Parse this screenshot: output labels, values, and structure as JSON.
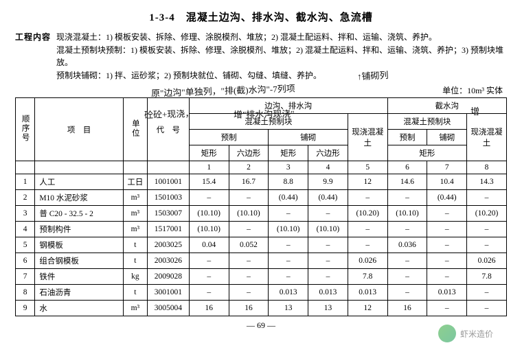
{
  "title": "1-3-4　混凝土边沟、排水沟、截水沟、急流槽",
  "content_label": "工程内容",
  "content_lines": [
    "现浇混凝土：1) 模板安装、拆除、修理、涂脱模剂、堆放；2) 混凝土配运料、拌和、运输、浇筑、养护。",
    "混凝土预制块预制：1) 模板安装、拆除、修理、涂脱模剂、堆放；2) 混凝土配运料、拌和、运输、浇筑、养护；3) 预制块堆放。",
    "预制块铺砌：1) 拌、运砂浆；2) 预制块就位、铺砌、勾缝、填缝、养护。"
  ],
  "unit_label": "单位：10m³ 实体",
  "header": {
    "seq": "顺序号",
    "item": "项　目",
    "unit": "单位",
    "code": "代　号",
    "group1": "边沟、排水沟",
    "group2": "截水沟",
    "sub_precast": "混凝土预制块",
    "sub_castinplace": "现浇混凝土",
    "sub_pre": "预制",
    "sub_lay": "铺砌",
    "shape_rect": "矩形",
    "shape_hex": "六边形"
  },
  "col_nums": [
    "1",
    "2",
    "3",
    "4",
    "5",
    "6",
    "7",
    "8"
  ],
  "rows": [
    {
      "n": "1",
      "item": "人工",
      "unit": "工日",
      "code": "1001001",
      "v": [
        "15.4",
        "16.7",
        "8.8",
        "9.9",
        "12",
        "14.6",
        "10.4",
        "14.3"
      ]
    },
    {
      "n": "2",
      "item": "M10 水泥砂浆",
      "unit": "m³",
      "code": "1501003",
      "v": [
        "–",
        "–",
        "(0.44)",
        "(0.44)",
        "–",
        "–",
        "(0.44)",
        "–"
      ]
    },
    {
      "n": "3",
      "item": "普 C20 - 32.5 - 2",
      "unit": "m³",
      "code": "1503007",
      "v": [
        "(10.10)",
        "(10.10)",
        "–",
        "–",
        "(10.20)",
        "(10.10)",
        "–",
        "(10.20)"
      ]
    },
    {
      "n": "4",
      "item": "预制构件",
      "unit": "m³",
      "code": "1517001",
      "v": [
        "(10.10)",
        "–",
        "(10.10)",
        "(10.10)",
        "–",
        "–",
        "–",
        "–"
      ]
    },
    {
      "n": "5",
      "item": "钢模板",
      "unit": "t",
      "code": "2003025",
      "v": [
        "0.04",
        "0.052",
        "–",
        "–",
        "–",
        "0.036",
        "–",
        "–"
      ]
    },
    {
      "n": "6",
      "item": "组合钢模板",
      "unit": "t",
      "code": "2003026",
      "v": [
        "–",
        "–",
        "–",
        "–",
        "0.026",
        "–",
        "–",
        "0.026"
      ]
    },
    {
      "n": "7",
      "item": "铁件",
      "unit": "kg",
      "code": "2009028",
      "v": [
        "–",
        "–",
        "–",
        "–",
        "7.8",
        "–",
        "–",
        "7.8"
      ]
    },
    {
      "n": "8",
      "item": "石油沥青",
      "unit": "t",
      "code": "3001001",
      "v": [
        "–",
        "–",
        "0.013",
        "0.013",
        "0.013",
        "–",
        "0.013",
        "–"
      ]
    },
    {
      "n": "9",
      "item": "水",
      "unit": "m³",
      "code": "3005004",
      "v": [
        "16",
        "16",
        "13",
        "13",
        "12",
        "16",
        "–",
        "–"
      ]
    }
  ],
  "footer": "— 69 —",
  "handwriting": {
    "h1": "↑铺砌列",
    "h2": "原\"边沟\"单独列，\"排(截)水沟\"-7列项",
    "h3": "砼砼+现浇，",
    "h3b": "增\"排水沟现浇\"",
    "h4": "增",
    "h5": "现浇混凝土"
  },
  "watermark": "虾米造价"
}
